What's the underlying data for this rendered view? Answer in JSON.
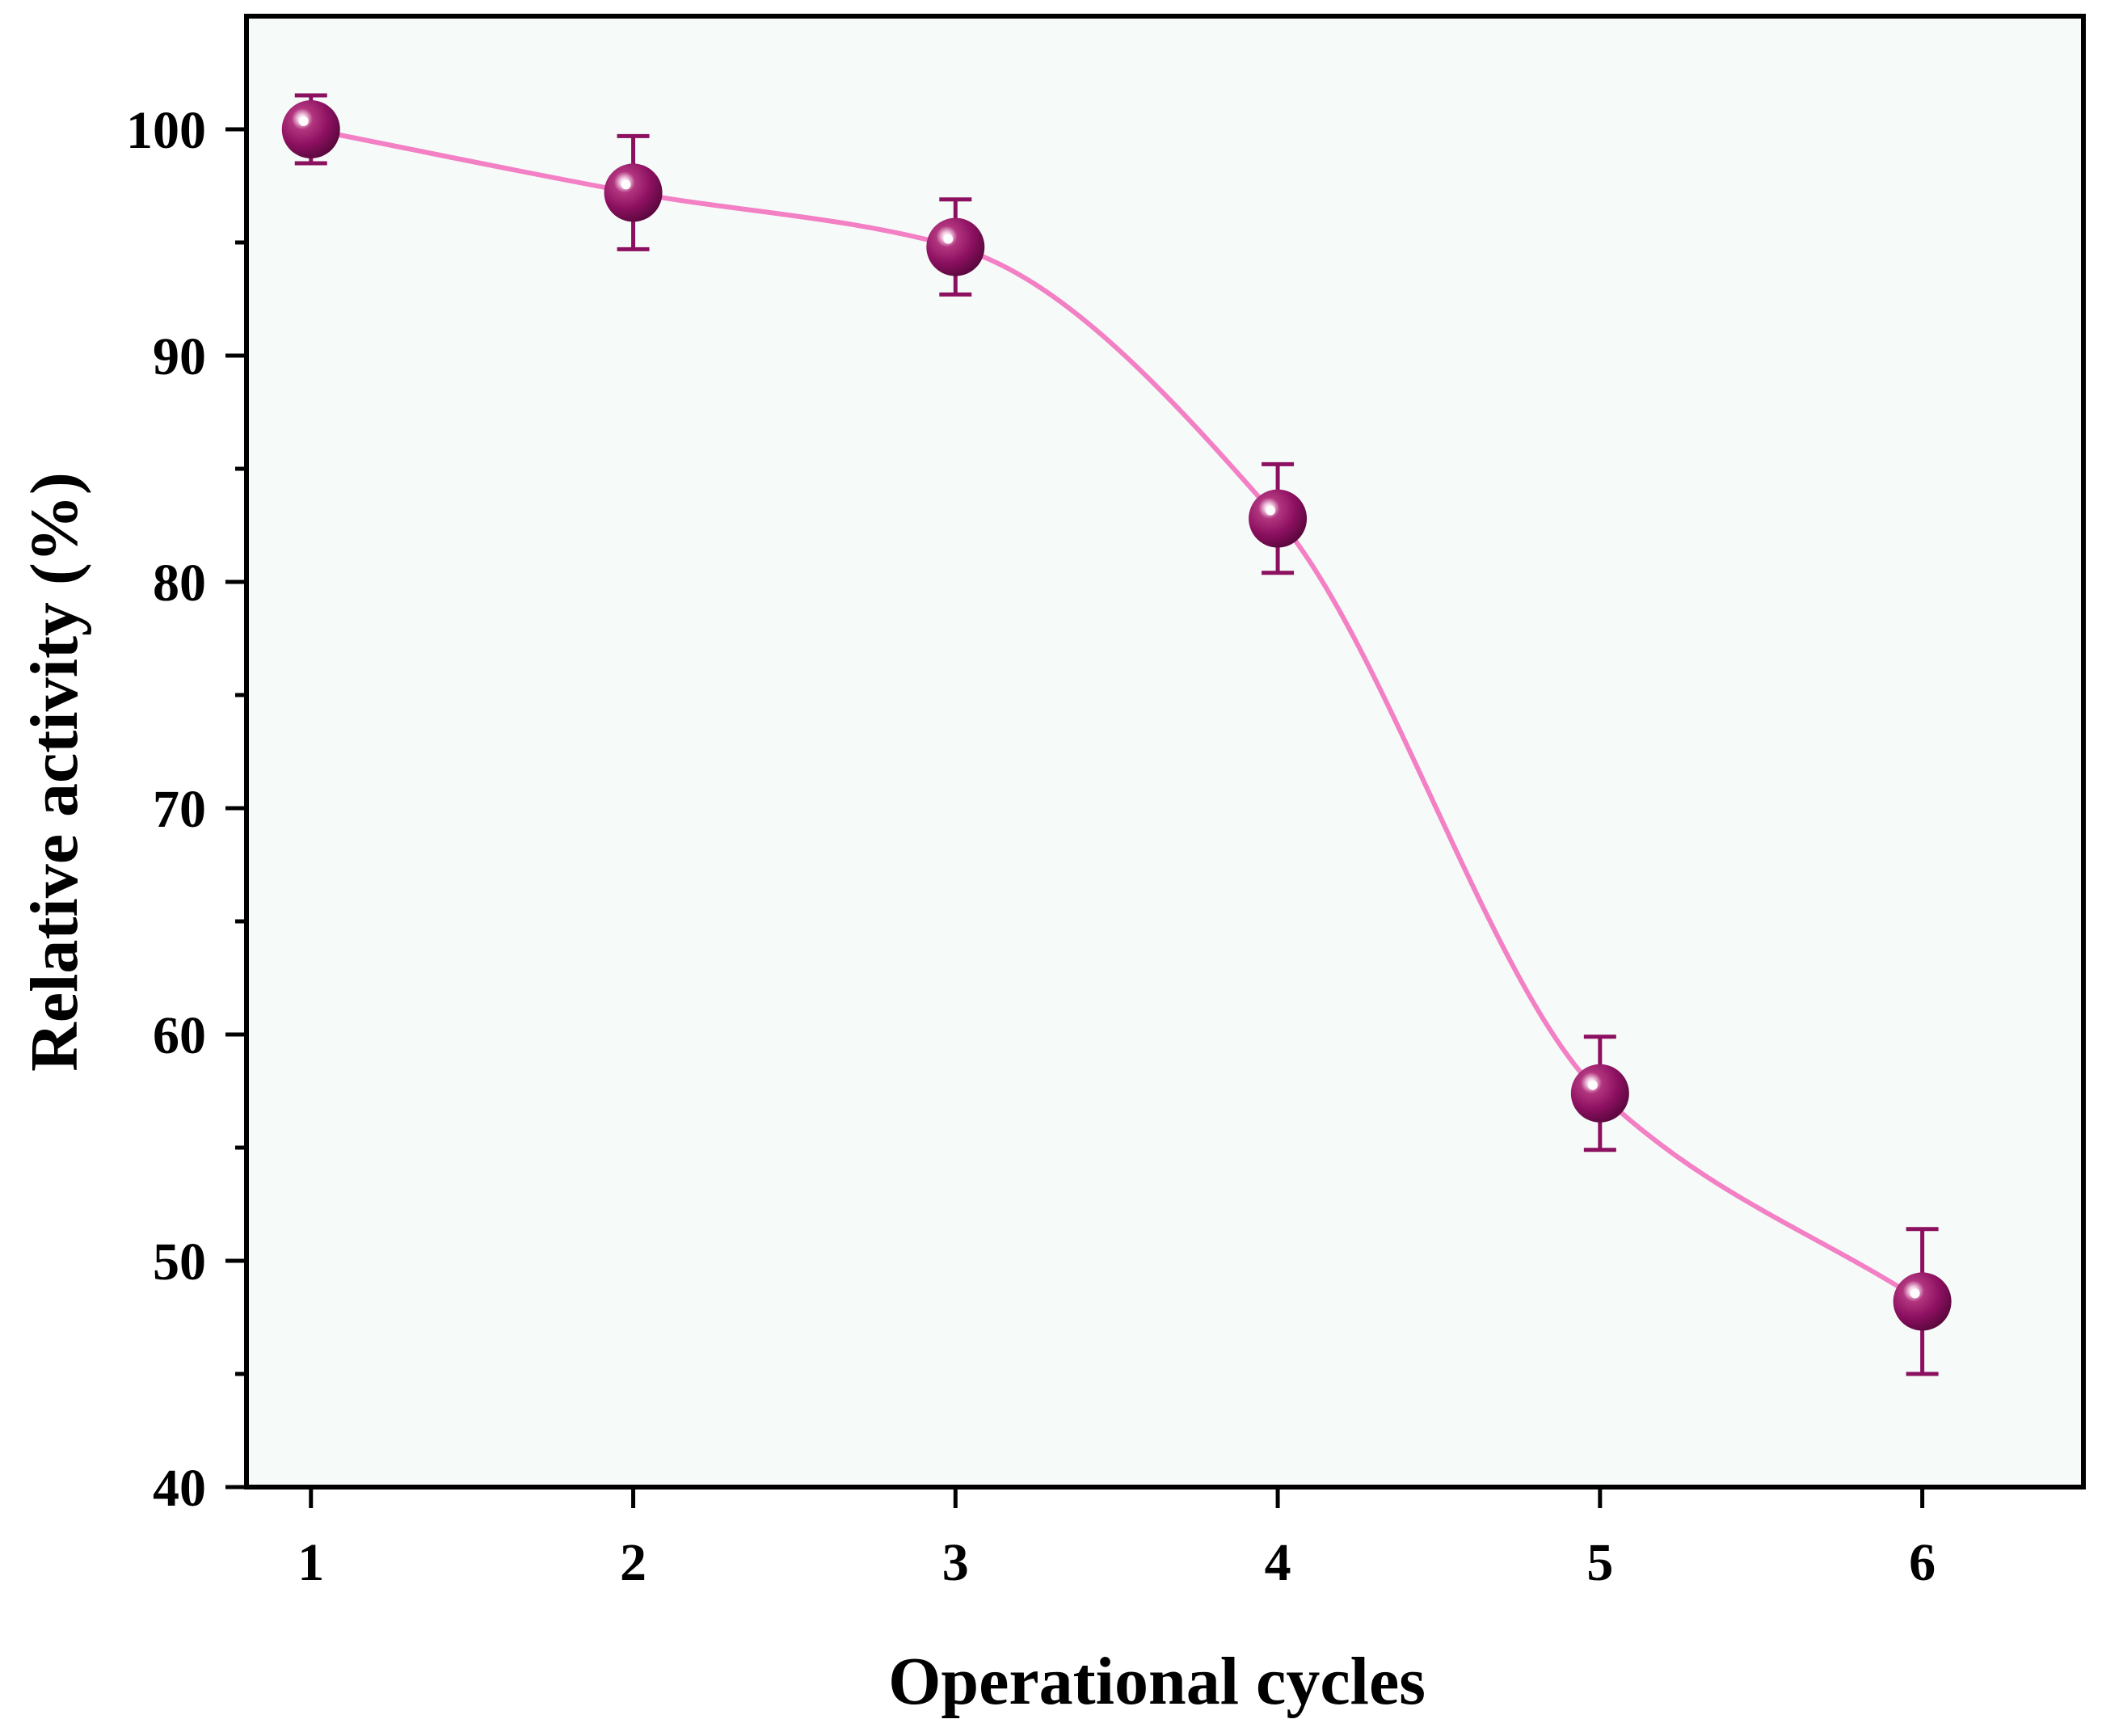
{
  "chart_data": {
    "type": "scatter",
    "title": "",
    "xlabel": "Operational cycles",
    "ylabel": "Relative activity (%)",
    "xlim": [
      0.8,
      6.5
    ],
    "ylim": [
      40,
      105
    ],
    "x_ticks": [
      1,
      2,
      3,
      4,
      5,
      6
    ],
    "y_ticks": [
      40,
      50,
      60,
      70,
      80,
      90,
      100
    ],
    "y_minor_ticks": [
      45,
      55,
      65,
      75,
      85,
      95
    ],
    "grid": false,
    "series": [
      {
        "name": "Relative activity",
        "x": [
          1,
          2,
          3,
          4,
          5,
          6
        ],
        "y": [
          100.0,
          97.2,
          94.8,
          82.8,
          57.4,
          48.2
        ],
        "error": [
          1.5,
          2.5,
          2.1,
          2.4,
          2.5,
          3.2
        ],
        "marker_color": "#8c1060",
        "error_color": "#8c1060",
        "line_color": "#f37fc4",
        "line_style": "smooth"
      }
    ],
    "plot_background": "#f6fbf9"
  }
}
